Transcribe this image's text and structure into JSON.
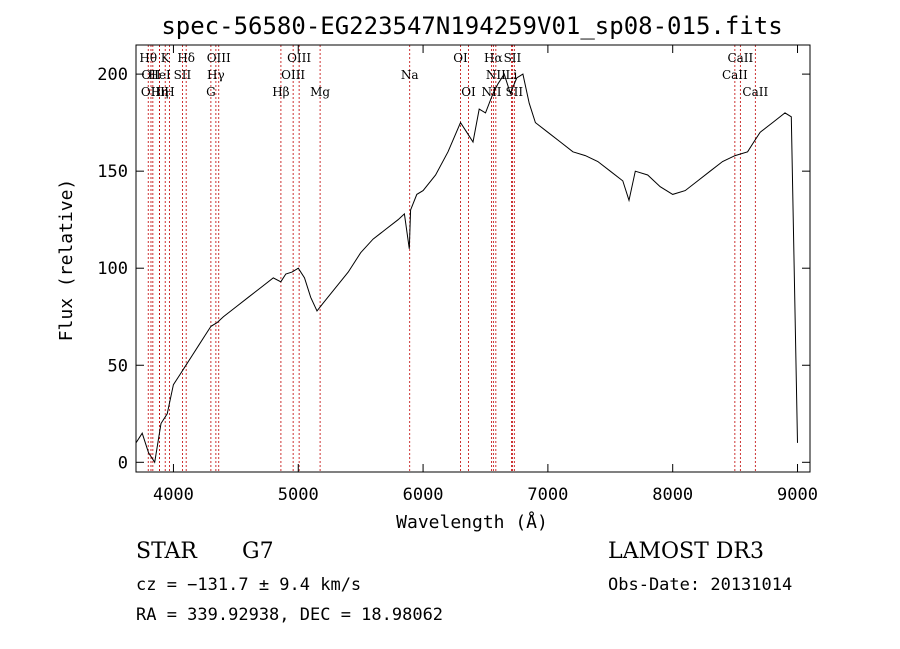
{
  "chart_data": {
    "type": "line",
    "title": "spec-56580-EG223547N194259V01_sp08-015.fits",
    "xlabel": "Wavelength (Å)",
    "ylabel": "Flux (relative)",
    "xlim": [
      3700,
      9100
    ],
    "ylim": [
      -5,
      215
    ],
    "x_ticks": [
      4000,
      5000,
      6000,
      7000,
      8000,
      9000
    ],
    "y_ticks": [
      0,
      50,
      100,
      150,
      200
    ],
    "grid": false,
    "line_color": "#000000",
    "marker_color": "#c00000",
    "series": [
      {
        "x": [
          3700,
          3750,
          3800,
          3850,
          3900,
          3950,
          4000,
          4050,
          4100,
          4150,
          4200,
          4250,
          4300,
          4350,
          4400,
          4500,
          4600,
          4700,
          4800,
          4860,
          4900,
          4950,
          5000,
          5050,
          5100,
          5150,
          5200,
          5300,
          5400,
          5500,
          5600,
          5700,
          5800,
          5850,
          5890,
          5900,
          5950,
          6000,
          6100,
          6200,
          6300,
          6350,
          6400,
          6450,
          6500,
          6560,
          6600,
          6650,
          6700,
          6750,
          6800,
          6850,
          6900,
          7000,
          7100,
          7200,
          7300,
          7400,
          7500,
          7600,
          7650,
          7700,
          7800,
          7900,
          8000,
          8100,
          8200,
          8300,
          8400,
          8500,
          8600,
          8650,
          8700,
          8800,
          8900,
          8950,
          9000
        ],
        "y": [
          10,
          15,
          5,
          0,
          20,
          25,
          40,
          45,
          50,
          55,
          60,
          65,
          70,
          72,
          75,
          80,
          85,
          90,
          95,
          93,
          97,
          98,
          100,
          95,
          85,
          78,
          82,
          90,
          98,
          108,
          115,
          120,
          125,
          128,
          110,
          130,
          138,
          140,
          148,
          160,
          175,
          170,
          165,
          182,
          180,
          190,
          195,
          200,
          190,
          198,
          200,
          185,
          175,
          170,
          165,
          160,
          158,
          155,
          150,
          145,
          135,
          150,
          148,
          142,
          138,
          140,
          145,
          150,
          155,
          158,
          160,
          165,
          170,
          175,
          180,
          178,
          10
        ]
      }
    ],
    "line_markers": [
      {
        "wl": 3798,
        "label": "Hθ",
        "row": 0
      },
      {
        "wl": 3820,
        "label": "OII",
        "row": 1
      },
      {
        "wl": 3835,
        "label": "OIII",
        "row": 2
      },
      {
        "wl": 3889,
        "label": "HeI",
        "row": 1
      },
      {
        "wl": 3889,
        "label": "Hη",
        "row": 2
      },
      {
        "wl": 3934,
        "label": "K",
        "row": 0
      },
      {
        "wl": 3968,
        "label": "H",
        "row": 2
      },
      {
        "wl": 4072,
        "label": "SII",
        "row": 1
      },
      {
        "wl": 4102,
        "label": "Hδ",
        "row": 0
      },
      {
        "wl": 4300,
        "label": "G",
        "row": 2
      },
      {
        "wl": 4340,
        "label": "Hγ",
        "row": 1
      },
      {
        "wl": 4363,
        "label": "OIII",
        "row": 0
      },
      {
        "wl": 4861,
        "label": "Hβ",
        "row": 2
      },
      {
        "wl": 4959,
        "label": "OIII",
        "row": 1
      },
      {
        "wl": 5007,
        "label": "OIII",
        "row": 0
      },
      {
        "wl": 5175,
        "label": "Mg",
        "row": 2
      },
      {
        "wl": 5893,
        "label": "Na",
        "row": 1
      },
      {
        "wl": 6300,
        "label": "OI",
        "row": 0
      },
      {
        "wl": 6364,
        "label": "OI",
        "row": 2
      },
      {
        "wl": 6548,
        "label": "NII",
        "row": 2
      },
      {
        "wl": 6563,
        "label": "Hα",
        "row": 0
      },
      {
        "wl": 6583,
        "label": "NII",
        "row": 1
      },
      {
        "wl": 6708,
        "label": "Li",
        "row": 1
      },
      {
        "wl": 6716,
        "label": "SII",
        "row": 0
      },
      {
        "wl": 6731,
        "label": "SII",
        "row": 2
      },
      {
        "wl": 8498,
        "label": "CaII",
        "row": 1
      },
      {
        "wl": 8542,
        "label": "CaII",
        "row": 0
      },
      {
        "wl": 8662,
        "label": "CaII",
        "row": 2
      }
    ]
  },
  "info": {
    "class_label": "STAR",
    "subclass_label": "G7",
    "survey": "LAMOST DR3",
    "cz": "cz = −131.7 ± 9.4 km/s",
    "obs_date": "Obs-Date: 20131014",
    "coords": "RA = 339.92938, DEC =  18.98062"
  }
}
